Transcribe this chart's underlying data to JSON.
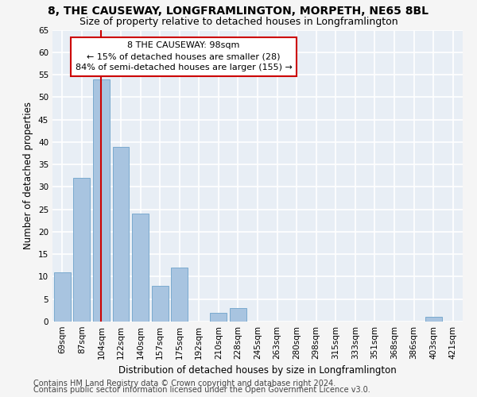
{
  "title": "8, THE CAUSEWAY, LONGFRAMLINGTON, MORPETH, NE65 8BL",
  "subtitle": "Size of property relative to detached houses in Longframlington",
  "xlabel": "Distribution of detached houses by size in Longframlington",
  "ylabel": "Number of detached properties",
  "categories": [
    "69sqm",
    "87sqm",
    "104sqm",
    "122sqm",
    "140sqm",
    "157sqm",
    "175sqm",
    "192sqm",
    "210sqm",
    "228sqm",
    "245sqm",
    "263sqm",
    "280sqm",
    "298sqm",
    "315sqm",
    "333sqm",
    "351sqm",
    "368sqm",
    "386sqm",
    "403sqm",
    "421sqm"
  ],
  "values": [
    11,
    32,
    54,
    39,
    24,
    8,
    12,
    0,
    2,
    3,
    0,
    0,
    0,
    0,
    0,
    0,
    0,
    0,
    0,
    1,
    0
  ],
  "bar_color": "#a8c4e0",
  "bar_edgecolor": "#7aaacf",
  "red_line_x": 2.0,
  "annotation_text": "8 THE CAUSEWAY: 98sqm\n← 15% of detached houses are smaller (28)\n84% of semi-detached houses are larger (155) →",
  "annotation_box_color": "#ffffff",
  "annotation_box_edgecolor": "#cc0000",
  "ylim": [
    0,
    65
  ],
  "yticks": [
    0,
    5,
    10,
    15,
    20,
    25,
    30,
    35,
    40,
    45,
    50,
    55,
    60,
    65
  ],
  "footer_line1": "Contains HM Land Registry data © Crown copyright and database right 2024.",
  "footer_line2": "Contains public sector information licensed under the Open Government Licence v3.0.",
  "background_color": "#e8eef5",
  "fig_background_color": "#f5f5f5",
  "grid_color": "#ffffff",
  "title_fontsize": 10,
  "subtitle_fontsize": 9,
  "axis_label_fontsize": 8.5,
  "tick_fontsize": 7.5,
  "footer_fontsize": 7,
  "annotation_fontsize": 8
}
